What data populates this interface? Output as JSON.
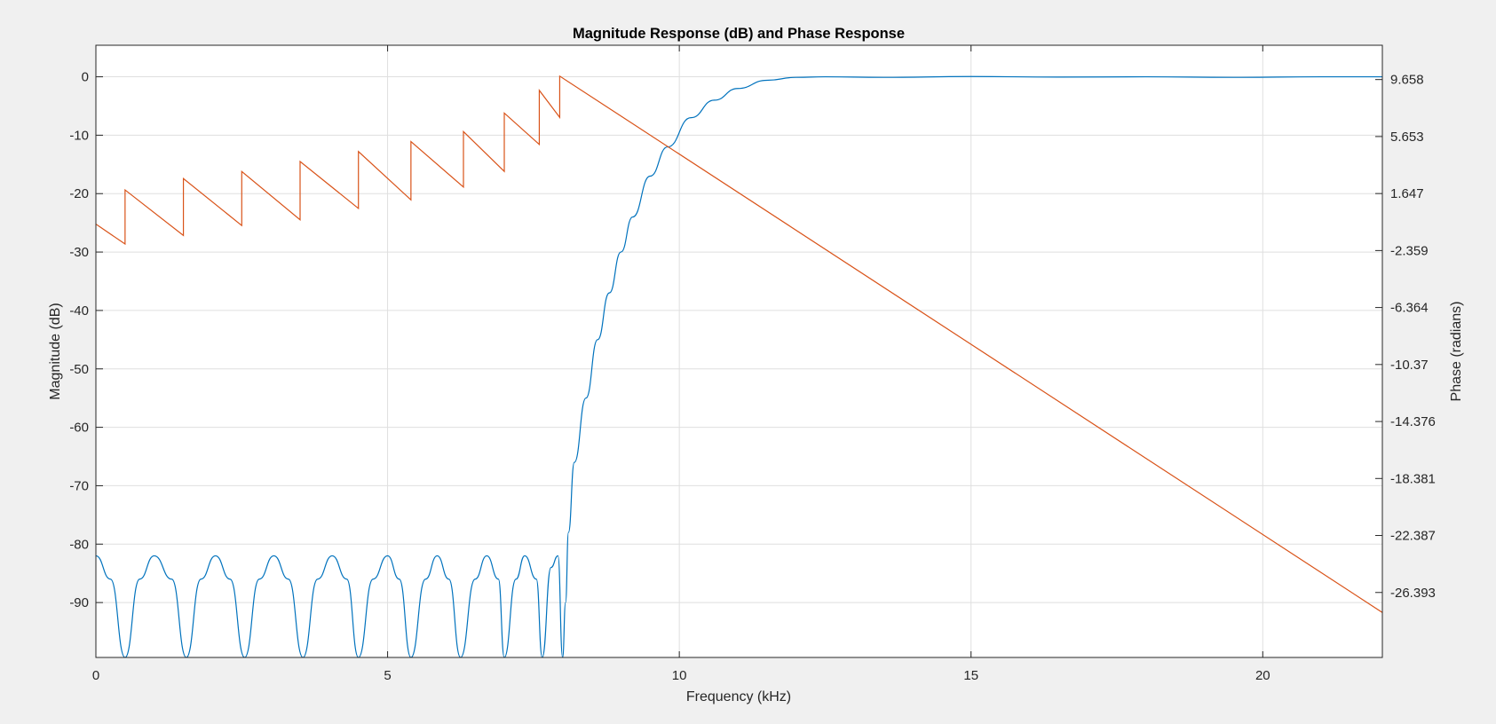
{
  "chart_data": {
    "type": "line",
    "title": "Magnitude Response (dB) and Phase Response",
    "xlabel": "Frequency (kHz)",
    "ylabel": "Magnitude (dB)",
    "ylabel_right": "Phase (radians)",
    "xlim": [
      0,
      22.05
    ],
    "ylim": [
      -99.4,
      5.4
    ],
    "ylim_right": [
      -30.96,
      12.07
    ],
    "grid": true,
    "x_ticks": [
      0,
      5,
      10,
      15,
      20
    ],
    "x_tick_labels": [
      "0",
      "5",
      "10",
      "15",
      "20"
    ],
    "y_ticks": [
      0,
      -10,
      -20,
      -30,
      -40,
      -50,
      -60,
      -70,
      -80,
      -90
    ],
    "y_tick_labels": [
      "0",
      "-10",
      "-20",
      "-30",
      "-40",
      "-50",
      "-60",
      "-70",
      "-80",
      "-90"
    ],
    "y_right_ticks": [
      9.658,
      5.653,
      1.647,
      -2.359,
      -6.364,
      -10.37,
      -14.376,
      -18.381,
      -22.387,
      -26.393
    ],
    "y_right_tick_labels": [
      "9.658",
      "5.653",
      "1.647",
      "-2.359",
      "-6.364",
      "-10.37",
      "-14.376",
      "-18.381",
      "-22.387",
      "-26.393"
    ],
    "series": [
      {
        "axis": "left",
        "color": "#0072bd",
        "x": [
          0,
          0.25,
          0.5,
          0.75,
          1.0,
          1.3,
          1.55,
          1.8,
          2.05,
          2.3,
          2.55,
          2.8,
          3.05,
          3.3,
          3.55,
          3.8,
          4.05,
          4.3,
          4.5,
          4.75,
          5.0,
          5.2,
          5.4,
          5.65,
          5.85,
          6.05,
          6.25,
          6.5,
          6.7,
          6.9,
          7.0,
          7.2,
          7.35,
          7.55,
          7.65,
          7.8,
          7.92,
          8.0,
          8.05,
          8.1,
          8.2,
          8.4,
          8.6,
          8.8,
          9.0,
          9.2,
          9.5,
          9.8,
          10.2,
          10.6,
          11.0,
          11.5,
          12.0,
          12.5,
          13.5,
          15.0,
          16.5,
          18.0,
          19.5,
          21.0,
          22.05
        ],
        "y": [
          -82,
          -86,
          -99.4,
          -86,
          -82,
          -86,
          -99.4,
          -86,
          -82,
          -86,
          -99.4,
          -86,
          -82,
          -86,
          -99.4,
          -86,
          -82,
          -86,
          -99.4,
          -86,
          -82,
          -86,
          -99.4,
          -86,
          -82,
          -86,
          -99.4,
          -86,
          -82,
          -86,
          -99.4,
          -86,
          -82,
          -86,
          -99.4,
          -84,
          -82,
          -99.4,
          -90,
          -78,
          -66,
          -55,
          -45,
          -37,
          -30,
          -24,
          -17,
          -12,
          -7,
          -4,
          -2,
          -0.6,
          -0.1,
          0,
          -0.1,
          0.05,
          -0.05,
          0,
          -0.1,
          0,
          0
        ],
        "label_points": [
          "0",
          "0.25",
          "0.5",
          "0.75",
          "1.0"
        ]
      },
      {
        "axis": "right",
        "color": "#d95319",
        "x": [
          0,
          0.5,
          0.5,
          1.5,
          1.5,
          2.5,
          2.5,
          3.5,
          3.5,
          4.5,
          4.5,
          5.4,
          5.4,
          6.3,
          6.3,
          7.0,
          7.0,
          7.6,
          7.6,
          7.95,
          7.95,
          22.05
        ],
        "y": [
          -0.5,
          -1.9,
          1.9,
          -1.3,
          2.7,
          -0.6,
          3.2,
          -0.2,
          3.9,
          0.6,
          4.6,
          1.2,
          5.3,
          2.1,
          6.0,
          3.2,
          7.3,
          5.1,
          8.9,
          7.0,
          9.9,
          -27.8
        ]
      }
    ]
  }
}
